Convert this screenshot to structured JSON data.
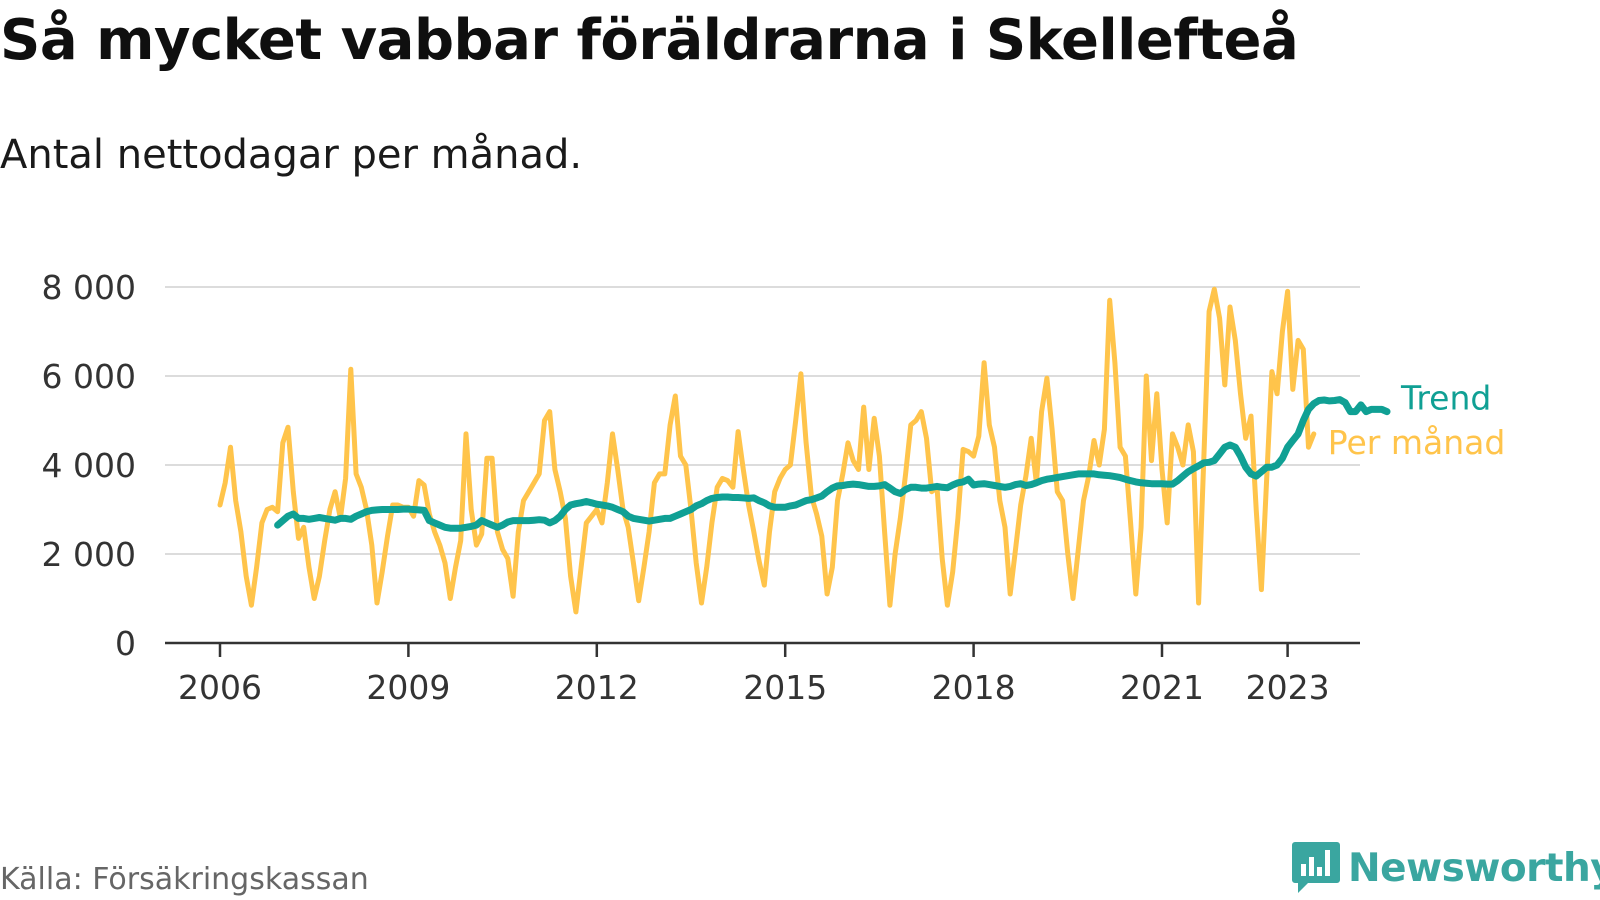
{
  "title": "Så mycket vabbar föräldrarna i Skellefteå",
  "subtitle": "Antal nettodagar per månad.",
  "source": "Källa: Försäkringskassan",
  "brand": {
    "name": "Newsworthy",
    "icon": "newsworthy-logo-icon",
    "color": "#3aa6a0"
  },
  "chart_data": {
    "type": "line",
    "title": "Så mycket vabbar föräldrarna i Skellefteå",
    "subtitle": "Antal nettodagar per månad.",
    "xlabel": "",
    "ylabel": "",
    "x_ticks": [
      "2006",
      "2009",
      "2012",
      "2015",
      "2018",
      "2021",
      "2023"
    ],
    "y_ticks": [
      "0",
      "2 000",
      "4 000",
      "6 000",
      "8 000"
    ],
    "y_tick_values": [
      0,
      2000,
      4000,
      6000,
      8000
    ],
    "ylim": [
      0,
      8000
    ],
    "xlim": [
      "2006-01",
      "2023-06"
    ],
    "grid": true,
    "legend": "direct labels at line ends (right)",
    "series": [
      {
        "name": "Per månad",
        "color": "#ffc44b",
        "x_start": "2006-01",
        "frequency": "monthly",
        "values": [
          3100,
          3600,
          4400,
          3200,
          2500,
          1500,
          850,
          1700,
          2700,
          3000,
          3050,
          2950,
          4500,
          4850,
          3400,
          2350,
          2600,
          1700,
          1000,
          1500,
          2300,
          3000,
          3400,
          2800,
          3700,
          6150,
          3800,
          3500,
          3000,
          2200,
          900,
          1600,
          2400,
          3100,
          3100,
          3050,
          3050,
          2850,
          3650,
          3550,
          2900,
          2500,
          2200,
          1800,
          1000,
          1700,
          2300,
          4700,
          3000,
          2200,
          2450,
          4150,
          4150,
          2500,
          2100,
          1900,
          1050,
          2500,
          3200,
          3400,
          3600,
          3800,
          5000,
          5200,
          3900,
          3400,
          2800,
          1500,
          700,
          1700,
          2700,
          2850,
          3000,
          2700,
          3600,
          4700,
          3900,
          3000,
          2600,
          1800,
          950,
          1700,
          2500,
          3600,
          3800,
          3800,
          4900,
          5550,
          4200,
          4000,
          3000,
          1800,
          900,
          1700,
          2700,
          3500,
          3700,
          3650,
          3500,
          4750,
          3900,
          3100,
          2500,
          1850,
          1300,
          2500,
          3400,
          3700,
          3900,
          4000,
          5000,
          6050,
          4500,
          3300,
          2900,
          2400,
          1100,
          1700,
          3200,
          3800,
          4500,
          4100,
          3900,
          5300,
          3900,
          5050,
          4200,
          2500,
          850,
          2000,
          2800,
          3800,
          4900,
          5000,
          5200,
          4600,
          3400,
          3500,
          1900,
          850,
          1600,
          2800,
          4350,
          4300,
          4200,
          4650,
          6300,
          4900,
          4400,
          3200,
          2600,
          1100,
          2100,
          3100,
          3750,
          4600,
          3600,
          5200,
          5950,
          4800,
          3400,
          3200,
          2000,
          1000,
          2100,
          3200,
          3750,
          4550,
          4000,
          4800,
          7700,
          6300,
          4400,
          4200,
          2700,
          1100,
          2600,
          6000,
          4100,
          5600,
          3900,
          2700,
          4700,
          4400,
          4000,
          4900,
          4300,
          900,
          4200,
          7450,
          7950,
          7300,
          5800,
          7550,
          6800,
          5600,
          4600,
          5100,
          3000,
          1200,
          3700,
          6100,
          5600,
          7000,
          7900,
          5700,
          6800,
          6600,
          4400,
          4700
        ]
      },
      {
        "name": "Trend",
        "color": "#10a094",
        "x_start": "2006-12",
        "frequency": "monthly",
        "values": [
          2650,
          2750,
          2850,
          2900,
          2800,
          2800,
          2780,
          2800,
          2820,
          2800,
          2780,
          2760,
          2800,
          2800,
          2780,
          2850,
          2900,
          2950,
          2980,
          2990,
          3000,
          3000,
          3000,
          3000,
          3010,
          3010,
          3000,
          2990,
          2980,
          2750,
          2700,
          2650,
          2600,
          2580,
          2580,
          2580,
          2600,
          2620,
          2650,
          2750,
          2700,
          2650,
          2600,
          2650,
          2720,
          2750,
          2750,
          2750,
          2750,
          2760,
          2770,
          2760,
          2700,
          2750,
          2850,
          3000,
          3100,
          3130,
          3150,
          3180,
          3150,
          3120,
          3100,
          3080,
          3050,
          3000,
          2950,
          2850,
          2800,
          2780,
          2760,
          2740,
          2760,
          2780,
          2800,
          2800,
          2850,
          2900,
          2950,
          3000,
          3080,
          3130,
          3200,
          3250,
          3270,
          3280,
          3280,
          3270,
          3270,
          3260,
          3250,
          3260,
          3200,
          3150,
          3080,
          3050,
          3050,
          3050,
          3080,
          3100,
          3150,
          3200,
          3220,
          3260,
          3300,
          3400,
          3480,
          3530,
          3540,
          3560,
          3570,
          3560,
          3540,
          3520,
          3520,
          3530,
          3560,
          3480,
          3400,
          3360,
          3450,
          3500,
          3500,
          3480,
          3480,
          3500,
          3520,
          3500,
          3490,
          3550,
          3600,
          3620,
          3680,
          3550,
          3570,
          3580,
          3560,
          3540,
          3520,
          3500,
          3520,
          3560,
          3580,
          3540,
          3560,
          3600,
          3650,
          3680,
          3700,
          3720,
          3740,
          3760,
          3780,
          3800,
          3800,
          3800,
          3800,
          3780,
          3770,
          3760,
          3740,
          3720,
          3680,
          3650,
          3620,
          3600,
          3590,
          3580,
          3580,
          3580,
          3570,
          3570,
          3650,
          3750,
          3850,
          3920,
          3980,
          4050,
          4060,
          4100,
          4250,
          4400,
          4450,
          4400,
          4200,
          3950,
          3800,
          3750,
          3850,
          3950,
          3950,
          4000,
          4150,
          4400,
          4550,
          4700,
          5000,
          5250,
          5380,
          5450,
          5460,
          5440,
          5450,
          5470,
          5400,
          5200,
          5200,
          5350,
          5200,
          5250,
          5250,
          5250,
          5200
        ]
      }
    ]
  }
}
